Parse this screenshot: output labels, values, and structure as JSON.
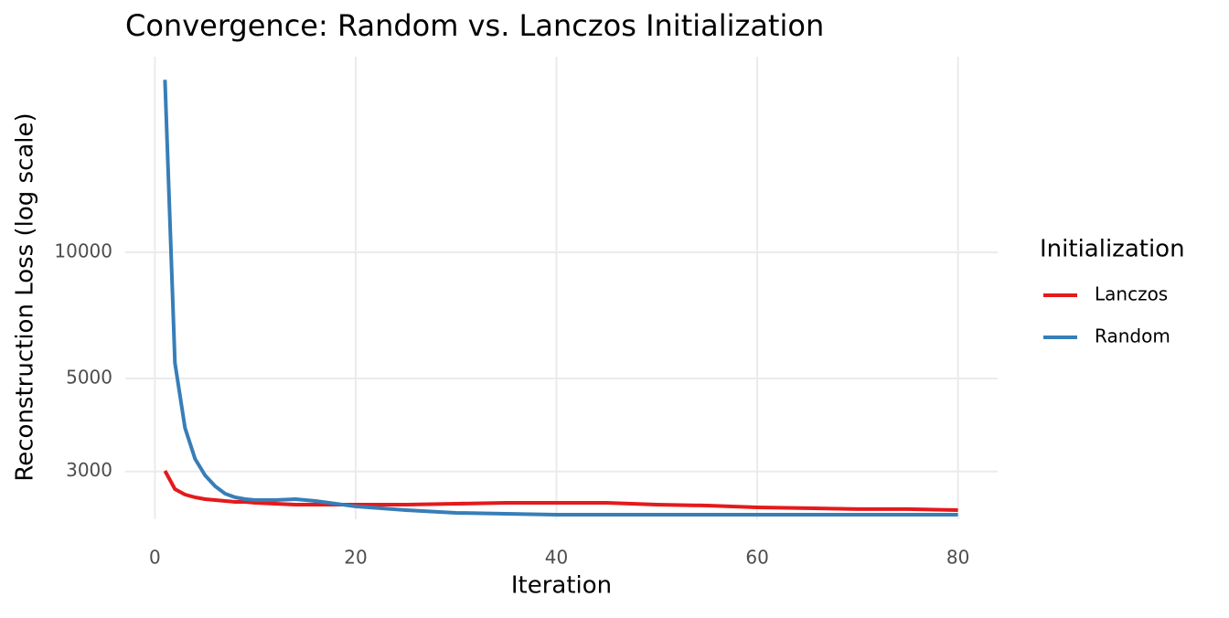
{
  "chart_data": {
    "type": "line",
    "title": "Convergence: Random vs. Lanczos Initialization",
    "x_label": "Iteration",
    "y_label": "Reconstruction Loss (log scale)",
    "legend_title": "Initialization",
    "legend_position": "right",
    "x": [
      1,
      2,
      3,
      4,
      5,
      6,
      7,
      8,
      9,
      10,
      12,
      14,
      16,
      18,
      20,
      25,
      30,
      35,
      40,
      45,
      50,
      55,
      60,
      65,
      70,
      75,
      80
    ],
    "series": [
      {
        "name": "Lanczos",
        "color": "#e41a1c",
        "values": [
          3011,
          2723,
          2642,
          2603,
          2577,
          2564,
          2551,
          2538,
          2538,
          2525,
          2513,
          2500,
          2500,
          2500,
          2500,
          2500,
          2513,
          2525,
          2525,
          2525,
          2500,
          2488,
          2463,
          2451,
          2439,
          2439,
          2426
        ]
      },
      {
        "name": "Random",
        "color": "#377eb8",
        "values": [
          25800,
          5447,
          3813,
          3215,
          2936,
          2765,
          2656,
          2603,
          2577,
          2564,
          2564,
          2577,
          2551,
          2513,
          2476,
          2426,
          2390,
          2378,
          2366,
          2366,
          2366,
          2366,
          2366,
          2366,
          2366,
          2366,
          2366
        ]
      }
    ],
    "xlim": [
      -2.95,
      83.95
    ],
    "xticks": [
      0,
      20,
      40,
      60,
      80
    ],
    "ylim": [
      2307,
      29290
    ],
    "yticks": [
      3000,
      5000,
      10000
    ],
    "log_y": true,
    "grid": true
  }
}
